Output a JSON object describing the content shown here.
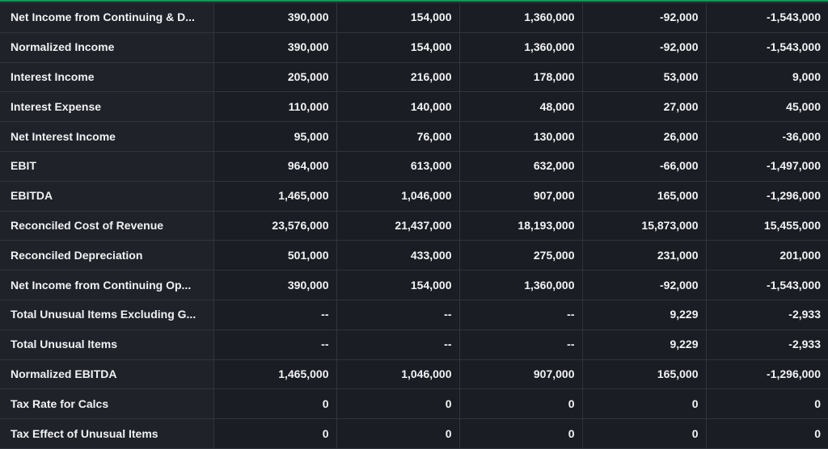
{
  "table": {
    "rows": [
      {
        "label": "Net Income from Continuing & D...",
        "values": [
          "390,000",
          "154,000",
          "1,360,000",
          "-92,000",
          "-1,543,000"
        ]
      },
      {
        "label": "Normalized Income",
        "values": [
          "390,000",
          "154,000",
          "1,360,000",
          "-92,000",
          "-1,543,000"
        ]
      },
      {
        "label": "Interest Income",
        "values": [
          "205,000",
          "216,000",
          "178,000",
          "53,000",
          "9,000"
        ]
      },
      {
        "label": "Interest Expense",
        "values": [
          "110,000",
          "140,000",
          "48,000",
          "27,000",
          "45,000"
        ]
      },
      {
        "label": "Net Interest Income",
        "values": [
          "95,000",
          "76,000",
          "130,000",
          "26,000",
          "-36,000"
        ]
      },
      {
        "label": "EBIT",
        "values": [
          "964,000",
          "613,000",
          "632,000",
          "-66,000",
          "-1,497,000"
        ]
      },
      {
        "label": "EBITDA",
        "values": [
          "1,465,000",
          "1,046,000",
          "907,000",
          "165,000",
          "-1,296,000"
        ]
      },
      {
        "label": "Reconciled Cost of Revenue",
        "values": [
          "23,576,000",
          "21,437,000",
          "18,193,000",
          "15,873,000",
          "15,455,000"
        ]
      },
      {
        "label": "Reconciled Depreciation",
        "values": [
          "501,000",
          "433,000",
          "275,000",
          "231,000",
          "201,000"
        ]
      },
      {
        "label": "Net Income from Continuing Op...",
        "values": [
          "390,000",
          "154,000",
          "1,360,000",
          "-92,000",
          "-1,543,000"
        ]
      },
      {
        "label": "Total Unusual Items Excluding G...",
        "values": [
          "--",
          "--",
          "--",
          "9,229",
          "-2,933"
        ]
      },
      {
        "label": "Total Unusual Items",
        "values": [
          "--",
          "--",
          "--",
          "9,229",
          "-2,933"
        ]
      },
      {
        "label": "Normalized EBITDA",
        "values": [
          "1,465,000",
          "1,046,000",
          "907,000",
          "165,000",
          "-1,296,000"
        ]
      },
      {
        "label": "Tax Rate for Calcs",
        "values": [
          "0",
          "0",
          "0",
          "0",
          "0"
        ]
      },
      {
        "label": "Tax Effect of Unusual Items",
        "values": [
          "0",
          "0",
          "0",
          "0",
          "0"
        ]
      }
    ]
  },
  "colors": {
    "accent": "#1f8f5c",
    "background": "#1b1e25",
    "label_cell": "#1f2229",
    "value_cell": "#1a1d23",
    "grid": "#30343d",
    "text": "#f2f3f5"
  }
}
